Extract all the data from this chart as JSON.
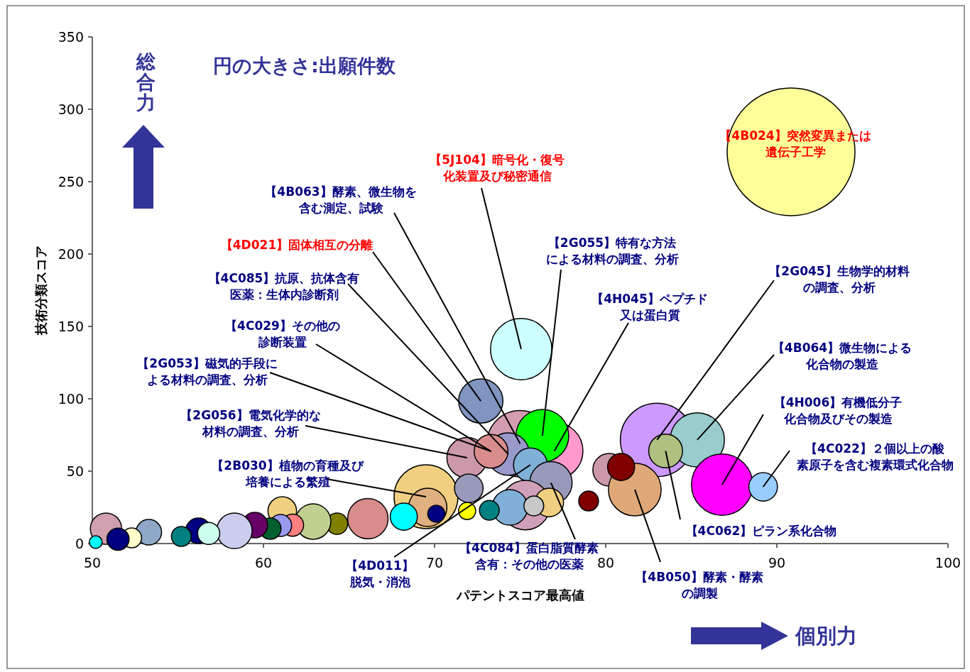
{
  "chart_data": {
    "type": "bubble",
    "subtitle": "円の大きさ:出願件数",
    "xlabel": "パテントスコア最高値",
    "ylabel": "技術分類スコア",
    "relative": false,
    "xlim": [
      50,
      100
    ],
    "xticks": [
      50,
      60,
      70,
      80,
      90,
      100
    ],
    "ylim": [
      0,
      350
    ],
    "yticks": [
      0,
      50,
      100,
      150,
      200,
      250,
      300,
      350
    ],
    "grid": false,
    "x": [
      90.83,
      75.06,
      72.7,
      75.0,
      77.0,
      76.3,
      74.3,
      71.9,
      73.3,
      75.6,
      76.8,
      69.5,
      69.6,
      72.0,
      75.3,
      74.4,
      76.7,
      75.8,
      73.2,
      71.9,
      70.1,
      68.2,
      66.1,
      64.3,
      62.9,
      61.1,
      61.7,
      61.0,
      60.4,
      59.5,
      58.3,
      56.2,
      56.8,
      55.2,
      53.3,
      52.3,
      50.8,
      51.5,
      50.2,
      83.0,
      85.35,
      83.5,
      86.8,
      89.2,
      80.2,
      81.7,
      80.9,
      79.0
    ],
    "values": [
      270.6,
      134.3,
      98.5,
      69,
      64,
      74.5,
      61.8,
      59.3,
      63.7,
      54.4,
      42,
      32.4,
      25,
      38.2,
      26.5,
      25,
      28.4,
      26,
      23,
      22.5,
      20.6,
      18.6,
      17.2,
      13.7,
      15.2,
      22.5,
      12.7,
      12.5,
      10.3,
      12.7,
      8.8,
      8.8,
      7,
      4.9,
      7.8,
      3.9,
      10.3,
      3,
      1,
      71.6,
      71.6,
      64,
      40.7,
      39.2,
      51,
      37.3,
      52.9,
      29.4
    ],
    "sizes": [
      1,
      0.23,
      0.12,
      0.27,
      0.2,
      0.17,
      0.11,
      0.1,
      0.07,
      0.07,
      0.11,
      0.25,
      0.09,
      0.05,
      0.15,
      0.077,
      0.05,
      0.024,
      0.024,
      0.018,
      0.018,
      0.045,
      0.1,
      0.028,
      0.077,
      0.05,
      0.03,
      0.03,
      0.028,
      0.04,
      0.077,
      0.04,
      0.03,
      0.024,
      0.04,
      0.024,
      0.06,
      0.03,
      0.01,
      0.33,
      0.18,
      0.07,
      0.23,
      0.05,
      0.065,
      0.17,
      0.045,
      0.024
    ],
    "colors": [
      "#ffff99",
      "#ccffff",
      "#8096c0",
      "#d39cb0",
      "#ff99cc",
      "#00ff00",
      "#9999cc",
      "#cc99aa",
      "#d98c8c",
      "#7fb0d8",
      "#9999bb",
      "#f0d080",
      "#e0b080",
      "#9999bb",
      "#d0a0b8",
      "#80b0d8",
      "#f0d080",
      "#c8c8c8",
      "#008080",
      "#ffff00",
      "#000080",
      "#00ffff",
      "#d98c8c",
      "#808000",
      "#c0d090",
      "#f0d080",
      "#ff8080",
      "#9999ee",
      "#006030",
      "#660066",
      "#ccccee",
      "#000080",
      "#ccffee",
      "#008080",
      "#8fa8c8",
      "#ffffcc",
      "#d0a0b0",
      "#000080",
      "#00ffff",
      "#cc99ff",
      "#99cccc",
      "#b0c080",
      "#ff00ff",
      "#99ccff",
      "#cc99aa",
      "#e0a878",
      "#800000",
      "#800000"
    ],
    "annotations": [
      {
        "text": "【4B024】突然変異または遺伝子工学",
        "x": 90.83,
        "y": 270.6
      },
      {
        "text": "【5J104】暗号化・復号化装置及び秘密通信",
        "x": 75.06,
        "y": 134.3
      },
      {
        "text": "【4B063】酵素、微生物を含む測定、試験",
        "x": 75.0,
        "y": 69
      },
      {
        "text": "【4D021】固体相互の分離",
        "x": 72.7,
        "y": 98.5
      },
      {
        "text": "【2G055】特有な方法による材料の調査、分析",
        "x": 76.3,
        "y": 74.5
      },
      {
        "text": "【4C085】抗原、抗体含有医薬：生体内診断剤",
        "x": 74.3,
        "y": 61.8
      },
      {
        "text": "【4C029】その他の診断装置",
        "x": 73.3,
        "y": 63.7
      },
      {
        "text": "【2G053】磁気的手段による材料の調査、分析",
        "x": 73.3,
        "y": 63.7
      },
      {
        "text": "【2G056】電気化学的な材料の調査、分析",
        "x": 71.9,
        "y": 59.3
      },
      {
        "text": "【2B030】植物の育種及び培養による繁殖",
        "x": 69.5,
        "y": 32.4
      },
      {
        "text": "【4D011】脱気・消泡",
        "x": 75.6,
        "y": 54.4
      },
      {
        "text": "【4C084】蛋白脂質酵素含有：その他の医薬",
        "x": 76.8,
        "y": 42
      },
      {
        "text": "【4H045】ペプチド又は蛋白質",
        "x": 77.0,
        "y": 64
      },
      {
        "text": "【2G045】生物学的材料の調査、分析",
        "x": 83.0,
        "y": 71.6
      },
      {
        "text": "【4B064】微生物による化合物の製造",
        "x": 85.35,
        "y": 71.6
      },
      {
        "text": "【4H006】有機低分子化合物及びその製造",
        "x": 86.8,
        "y": 40.7
      },
      {
        "text": "【4C022】２個以上の酸素原子を含む複素環式化合物",
        "x": 89.2,
        "y": 39.2
      },
      {
        "text": "【4C062】ピラン系化合物",
        "x": 83.5,
        "y": 64
      },
      {
        "text": "【4B050】酵素・酵素の調製",
        "x": 81.7,
        "y": 37.3
      },
      "総合力",
      "個別力"
    ]
  }
}
